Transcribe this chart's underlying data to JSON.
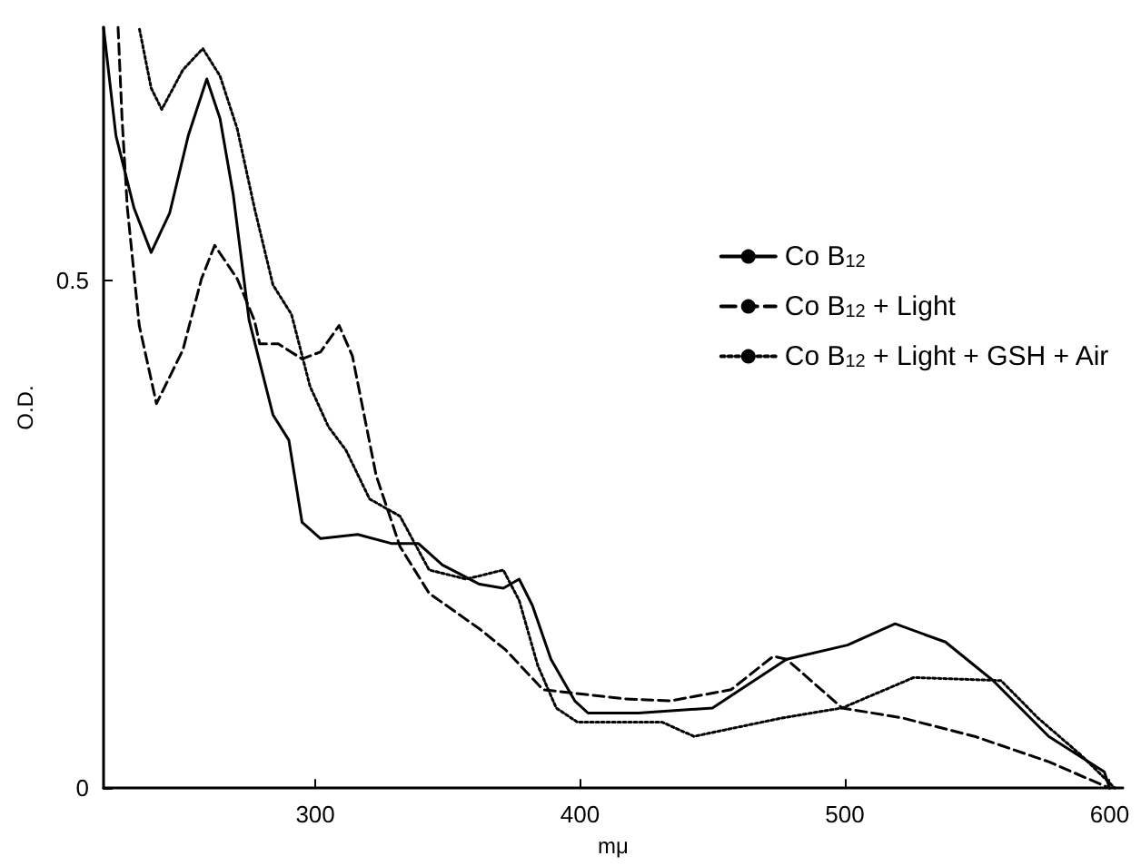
{
  "chart_data": {
    "type": "line",
    "xlabel": "mμ",
    "ylabel": "O.D.",
    "xlim": [
      220,
      605
    ],
    "ylim": [
      0,
      0.75
    ],
    "xticks": [
      300,
      400,
      500,
      600
    ],
    "yticks": [
      0,
      0.5
    ],
    "grid": false,
    "legend": "right",
    "marker": "none",
    "series": [
      {
        "name": "Co B$_{12}$",
        "color": "#000000",
        "line_style": "solid",
        "x": [
          220,
          224.7,
          231.5,
          238,
          245,
          252,
          259,
          264,
          269,
          275,
          284,
          290,
          295,
          302,
          316,
          329,
          339,
          348,
          362,
          371,
          377,
          382,
          389,
          398,
          403,
          422,
          450,
          478,
          501,
          519,
          538,
          556,
          577,
          598,
          600
        ],
        "values": [
          0.75,
          0.643,
          0.572,
          0.528,
          0.567,
          0.643,
          0.699,
          0.66,
          0.585,
          0.461,
          0.368,
          0.343,
          0.262,
          0.246,
          0.25,
          0.241,
          0.241,
          0.22,
          0.201,
          0.197,
          0.206,
          0.18,
          0.127,
          0.086,
          0.074,
          0.074,
          0.079,
          0.127,
          0.141,
          0.162,
          0.144,
          0.106,
          0.051,
          0.016,
          0
        ]
      },
      {
        "name": "Co B$_{12}$ + Light",
        "color": "#000000",
        "line_style": "dashed",
        "x": [
          225.5,
          227,
          229,
          233.5,
          240,
          250,
          257,
          262,
          270.5,
          277,
          279,
          286,
          295,
          302,
          309,
          314,
          323,
          332,
          343,
          362,
          372,
          386,
          417,
          434,
          457,
          473,
          478,
          499,
          522,
          549,
          577,
          600
        ],
        "values": [
          0.75,
          0.66,
          0.572,
          0.456,
          0.379,
          0.432,
          0.502,
          0.535,
          0.502,
          0.461,
          0.438,
          0.438,
          0.423,
          0.43,
          0.456,
          0.426,
          0.308,
          0.238,
          0.192,
          0.157,
          0.136,
          0.097,
          0.088,
          0.086,
          0.097,
          0.13,
          0.127,
          0.079,
          0.069,
          0.051,
          0.026,
          0
        ]
      },
      {
        "name": "Co B$_{12}$ + Light + GSH + Air",
        "color": "#000000",
        "line_style": "dotted",
        "x": [
          233.6,
          238,
          242,
          250,
          257.5,
          264,
          270.5,
          277,
          284,
          291,
          298,
          305,
          311.6,
          320.5,
          332,
          343,
          357,
          371,
          377,
          384,
          391,
          399,
          410,
          431,
          443,
          476,
          499,
          526,
          559,
          573,
          589,
          602
        ],
        "values": [
          0.748,
          0.69,
          0.669,
          0.708,
          0.729,
          0.702,
          0.65,
          0.572,
          0.496,
          0.467,
          0.396,
          0.356,
          0.333,
          0.285,
          0.268,
          0.215,
          0.206,
          0.215,
          0.185,
          0.121,
          0.079,
          0.065,
          0.065,
          0.065,
          0.051,
          0.069,
          0.079,
          0.109,
          0.106,
          0.069,
          0.033,
          0
        ]
      }
    ]
  }
}
